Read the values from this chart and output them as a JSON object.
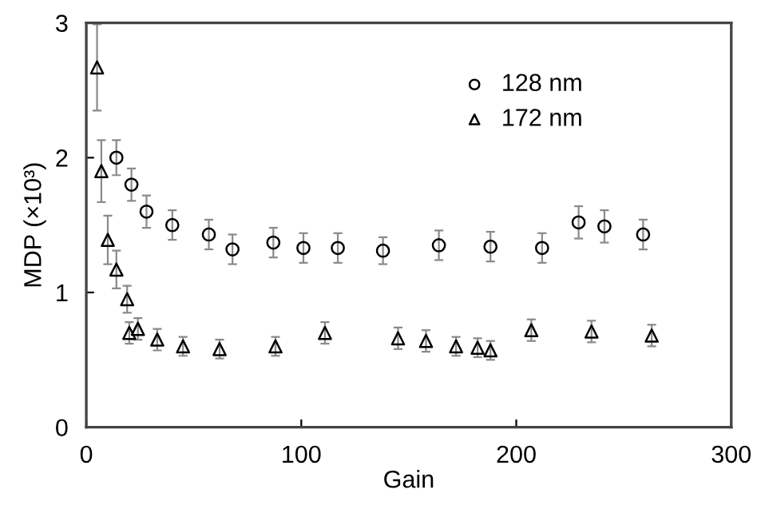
{
  "chart_data": {
    "type": "scatter",
    "xlabel": "Gain",
    "ylabel": "MDP (×10³)",
    "xlim": [
      0,
      300
    ],
    "xticks": [
      0,
      100,
      200,
      300
    ],
    "ylim": [
      0,
      3
    ],
    "yticks": [
      0,
      1,
      2,
      3
    ],
    "grid": false,
    "legend": "top right",
    "series": [
      {
        "name": "128 nm",
        "color": "#000000",
        "marker": "circle",
        "x": [
          14,
          21,
          28,
          40,
          57,
          68,
          87,
          101,
          117,
          138,
          164,
          188,
          212,
          229,
          241,
          259
        ],
        "values": [
          2.0,
          1.8,
          1.6,
          1.5,
          1.43,
          1.32,
          1.37,
          1.33,
          1.33,
          1.31,
          1.35,
          1.34,
          1.33,
          1.52,
          1.49,
          1.43
        ],
        "errors": [
          0.13,
          0.12,
          0.12,
          0.11,
          0.11,
          0.11,
          0.11,
          0.11,
          0.11,
          0.1,
          0.11,
          0.11,
          0.11,
          0.12,
          0.12,
          0.11
        ]
      },
      {
        "name": "172 nm",
        "color": "#000000",
        "marker": "triangle",
        "x": [
          5,
          7,
          10,
          14,
          19,
          20,
          24,
          33,
          45,
          62,
          88,
          111,
          145,
          158,
          172,
          182,
          188,
          207,
          235,
          263
        ],
        "values": [
          2.67,
          1.9,
          1.39,
          1.17,
          0.95,
          0.7,
          0.73,
          0.65,
          0.6,
          0.58,
          0.6,
          0.7,
          0.66,
          0.64,
          0.6,
          0.59,
          0.57,
          0.72,
          0.71,
          0.68
        ],
        "errors": [
          0.32,
          0.23,
          0.18,
          0.14,
          0.1,
          0.08,
          0.08,
          0.08,
          0.07,
          0.07,
          0.07,
          0.08,
          0.08,
          0.08,
          0.07,
          0.07,
          0.07,
          0.08,
          0.08,
          0.08
        ]
      }
    ]
  }
}
